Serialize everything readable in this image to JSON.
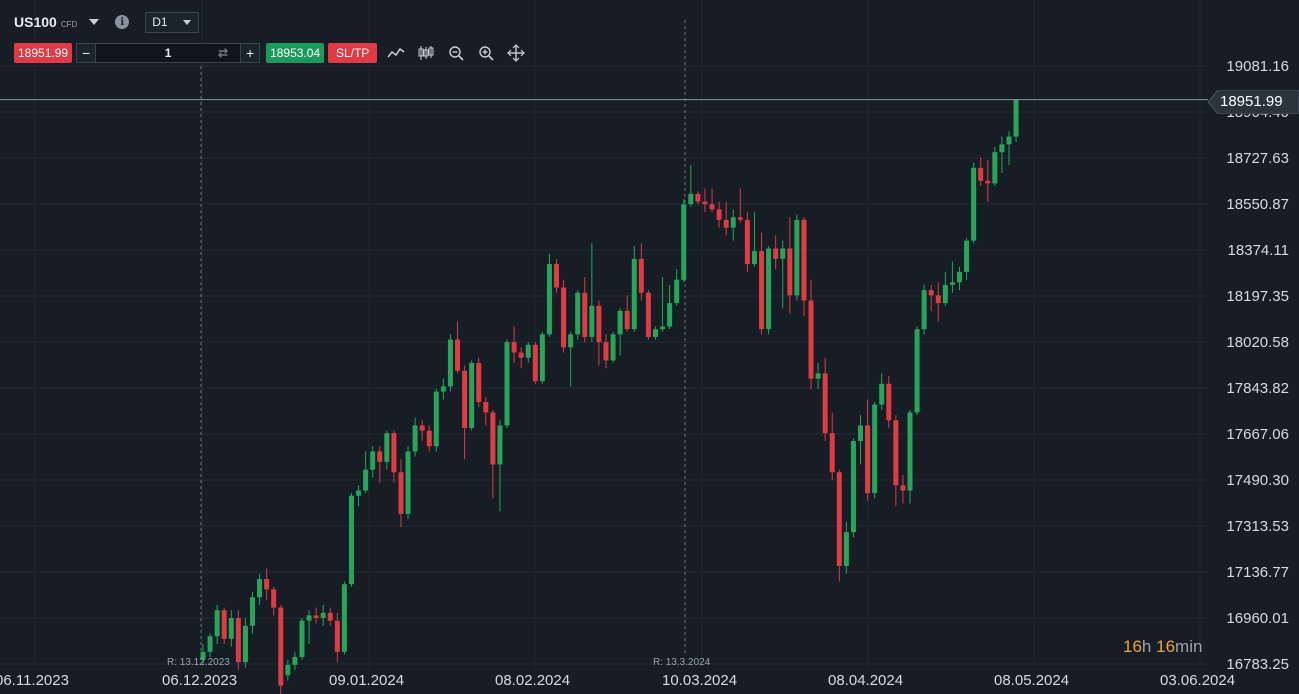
{
  "instrument": {
    "symbol": "US100",
    "type": "CFD"
  },
  "timeframe": {
    "selected": "D1"
  },
  "trade": {
    "sell_price": "18951.99",
    "buy_price": "18953.04",
    "quantity": "1",
    "minus_label": "−",
    "plus_label": "+",
    "sltp_label": "SL/TP"
  },
  "toolbar": {
    "icons": [
      "line-chart-icon",
      "candlestick-chart-icon",
      "zoom-out-icon",
      "zoom-in-icon",
      "crosshair-move-icon"
    ]
  },
  "axis": {
    "y_ticks": [
      "19081.16",
      "18904.40",
      "18727.63",
      "18550.87",
      "18374.11",
      "18197.35",
      "18020.58",
      "17843.82",
      "17667.06",
      "17490.30",
      "17313.53",
      "17136.77",
      "16960.01",
      "16783.25"
    ],
    "x_ticks": [
      "06.11.2023",
      "06.12.2023",
      "09.01.2024",
      "08.02.2024",
      "10.03.2024",
      "08.04.2024",
      "08.05.2024",
      "03.06.2024"
    ]
  },
  "current_price": "18951.99",
  "reference_lines": [
    {
      "label": "R: 13.12.2023"
    },
    {
      "label": "R: 13.3.2024"
    }
  ],
  "countdown": {
    "hours": "16",
    "hours_unit": "h",
    "minutes": "16",
    "minutes_unit": "min"
  },
  "colors": {
    "background": "#161d25",
    "bull": "#26a65b",
    "bear": "#e03a45",
    "countdown_number": "#f0a33a"
  },
  "chart_data": {
    "type": "candlestick",
    "instrument": "US100",
    "timeframe": "D1",
    "ylim": [
      16783.25,
      19081.16
    ],
    "candles": [
      {
        "o": 16800,
        "h": 16860,
        "l": 16780,
        "c": 16830
      },
      {
        "o": 16830,
        "h": 16900,
        "l": 16810,
        "c": 16890
      },
      {
        "o": 16890,
        "h": 17010,
        "l": 16860,
        "c": 16990
      },
      {
        "o": 16990,
        "h": 17000,
        "l": 16860,
        "c": 16880
      },
      {
        "o": 16880,
        "h": 16990,
        "l": 16850,
        "c": 16960
      },
      {
        "o": 16960,
        "h": 16990,
        "l": 16760,
        "c": 16790
      },
      {
        "o": 16790,
        "h": 16960,
        "l": 16770,
        "c": 16930
      },
      {
        "o": 16930,
        "h": 17060,
        "l": 16900,
        "c": 17040
      },
      {
        "o": 17040,
        "h": 17130,
        "l": 17010,
        "c": 17110
      },
      {
        "o": 17110,
        "h": 17150,
        "l": 17030,
        "c": 17070
      },
      {
        "o": 17070,
        "h": 17080,
        "l": 16970,
        "c": 17000
      },
      {
        "o": 17000,
        "h": 17010,
        "l": 16660,
        "c": 16700
      },
      {
        "o": 16740,
        "h": 16800,
        "l": 16720,
        "c": 16780
      },
      {
        "o": 16780,
        "h": 16830,
        "l": 16760,
        "c": 16810
      },
      {
        "o": 16810,
        "h": 16960,
        "l": 16800,
        "c": 16950
      },
      {
        "o": 16950,
        "h": 16990,
        "l": 16860,
        "c": 16970
      },
      {
        "o": 16970,
        "h": 17000,
        "l": 16940,
        "c": 16960
      },
      {
        "o": 16960,
        "h": 17010,
        "l": 16930,
        "c": 16980
      },
      {
        "o": 16980,
        "h": 17000,
        "l": 16930,
        "c": 16950
      },
      {
        "o": 16950,
        "h": 16980,
        "l": 16790,
        "c": 16830
      },
      {
        "o": 16830,
        "h": 17100,
        "l": 16820,
        "c": 17090
      },
      {
        "o": 17090,
        "h": 17440,
        "l": 17080,
        "c": 17430
      },
      {
        "o": 17430,
        "h": 17470,
        "l": 17390,
        "c": 17450
      },
      {
        "o": 17450,
        "h": 17600,
        "l": 17440,
        "c": 17530
      },
      {
        "o": 17530,
        "h": 17620,
        "l": 17500,
        "c": 17600
      },
      {
        "o": 17600,
        "h": 17620,
        "l": 17480,
        "c": 17560
      },
      {
        "o": 17560,
        "h": 17680,
        "l": 17530,
        "c": 17670
      },
      {
        "o": 17670,
        "h": 17680,
        "l": 17480,
        "c": 17520
      },
      {
        "o": 17520,
        "h": 17570,
        "l": 17310,
        "c": 17360
      },
      {
        "o": 17360,
        "h": 17620,
        "l": 17340,
        "c": 17600
      },
      {
        "o": 17600,
        "h": 17730,
        "l": 17580,
        "c": 17700
      },
      {
        "o": 17700,
        "h": 17720,
        "l": 17640,
        "c": 17680
      },
      {
        "o": 17680,
        "h": 17700,
        "l": 17600,
        "c": 17620
      },
      {
        "o": 17620,
        "h": 17840,
        "l": 17600,
        "c": 17830
      },
      {
        "o": 17830,
        "h": 17880,
        "l": 17800,
        "c": 17850
      },
      {
        "o": 17850,
        "h": 18050,
        "l": 17830,
        "c": 18030
      },
      {
        "o": 18030,
        "h": 18100,
        "l": 17900,
        "c": 17910
      },
      {
        "o": 17910,
        "h": 17930,
        "l": 17570,
        "c": 17690
      },
      {
        "o": 17690,
        "h": 17950,
        "l": 17680,
        "c": 17940
      },
      {
        "o": 17940,
        "h": 17960,
        "l": 17770,
        "c": 17790
      },
      {
        "o": 17790,
        "h": 17810,
        "l": 17700,
        "c": 17750
      },
      {
        "o": 17750,
        "h": 17760,
        "l": 17420,
        "c": 17550
      },
      {
        "o": 17550,
        "h": 17720,
        "l": 17370,
        "c": 17700
      },
      {
        "o": 17700,
        "h": 18030,
        "l": 17690,
        "c": 18020
      },
      {
        "o": 18020,
        "h": 18080,
        "l": 17940,
        "c": 17980
      },
      {
        "o": 17980,
        "h": 18000,
        "l": 17920,
        "c": 17960
      },
      {
        "o": 17960,
        "h": 18020,
        "l": 17940,
        "c": 18010
      },
      {
        "o": 18010,
        "h": 18020,
        "l": 17860,
        "c": 17870
      },
      {
        "o": 17870,
        "h": 18060,
        "l": 17860,
        "c": 18050
      },
      {
        "o": 18050,
        "h": 18360,
        "l": 18040,
        "c": 18320
      },
      {
        "o": 18320,
        "h": 18340,
        "l": 18210,
        "c": 18230
      },
      {
        "o": 18230,
        "h": 18260,
        "l": 17980,
        "c": 18000
      },
      {
        "o": 18000,
        "h": 18060,
        "l": 17850,
        "c": 18050
      },
      {
        "o": 18050,
        "h": 18220,
        "l": 18030,
        "c": 18210
      },
      {
        "o": 18210,
        "h": 18270,
        "l": 18020,
        "c": 18040
      },
      {
        "o": 18040,
        "h": 18400,
        "l": 18020,
        "c": 18160
      },
      {
        "o": 18160,
        "h": 18180,
        "l": 17930,
        "c": 18020
      },
      {
        "o": 18020,
        "h": 18050,
        "l": 17920,
        "c": 17950
      },
      {
        "o": 17950,
        "h": 18060,
        "l": 17940,
        "c": 18050
      },
      {
        "o": 18050,
        "h": 18150,
        "l": 17970,
        "c": 18140
      },
      {
        "o": 18140,
        "h": 18200,
        "l": 18060,
        "c": 18070
      },
      {
        "o": 18070,
        "h": 18390,
        "l": 18060,
        "c": 18340
      },
      {
        "o": 18340,
        "h": 18400,
        "l": 18180,
        "c": 18210
      },
      {
        "o": 18210,
        "h": 18220,
        "l": 18030,
        "c": 18040
      },
      {
        "o": 18040,
        "h": 18080,
        "l": 18030,
        "c": 18070
      },
      {
        "o": 18070,
        "h": 18270,
        "l": 18060,
        "c": 18080
      },
      {
        "o": 18080,
        "h": 18240,
        "l": 18070,
        "c": 18170
      },
      {
        "o": 18170,
        "h": 18300,
        "l": 18160,
        "c": 18260
      },
      {
        "o": 18260,
        "h": 18570,
        "l": 18250,
        "c": 18550
      },
      {
        "o": 18550,
        "h": 18700,
        "l": 18540,
        "c": 18590
      },
      {
        "o": 18590,
        "h": 18600,
        "l": 18550,
        "c": 18560
      },
      {
        "o": 18560,
        "h": 18610,
        "l": 18520,
        "c": 18550
      },
      {
        "o": 18550,
        "h": 18610,
        "l": 18520,
        "c": 18530
      },
      {
        "o": 18530,
        "h": 18560,
        "l": 18460,
        "c": 18490
      },
      {
        "o": 18490,
        "h": 18560,
        "l": 18430,
        "c": 18460
      },
      {
        "o": 18460,
        "h": 18530,
        "l": 18410,
        "c": 18500
      },
      {
        "o": 18500,
        "h": 18610,
        "l": 18480,
        "c": 18490
      },
      {
        "o": 18490,
        "h": 18520,
        "l": 18290,
        "c": 18320
      },
      {
        "o": 18320,
        "h": 18520,
        "l": 18310,
        "c": 18370
      },
      {
        "o": 18370,
        "h": 18440,
        "l": 18050,
        "c": 18070
      },
      {
        "o": 18070,
        "h": 18390,
        "l": 18050,
        "c": 18380
      },
      {
        "o": 18380,
        "h": 18430,
        "l": 18300,
        "c": 18340
      },
      {
        "o": 18340,
        "h": 18410,
        "l": 18150,
        "c": 18380
      },
      {
        "o": 18380,
        "h": 18500,
        "l": 18130,
        "c": 18200
      },
      {
        "o": 18200,
        "h": 18510,
        "l": 18180,
        "c": 18490
      },
      {
        "o": 18490,
        "h": 18500,
        "l": 18120,
        "c": 18180
      },
      {
        "o": 18180,
        "h": 18260,
        "l": 17840,
        "c": 17880
      },
      {
        "o": 17880,
        "h": 17940,
        "l": 17840,
        "c": 17900
      },
      {
        "o": 17900,
        "h": 17960,
        "l": 17640,
        "c": 17670
      },
      {
        "o": 17670,
        "h": 17750,
        "l": 17490,
        "c": 17520
      },
      {
        "o": 17520,
        "h": 17530,
        "l": 17100,
        "c": 17160
      },
      {
        "o": 17160,
        "h": 17330,
        "l": 17130,
        "c": 17290
      },
      {
        "o": 17290,
        "h": 17650,
        "l": 17270,
        "c": 17640
      },
      {
        "o": 17640,
        "h": 17740,
        "l": 17550,
        "c": 17700
      },
      {
        "o": 17700,
        "h": 17800,
        "l": 17410,
        "c": 17440
      },
      {
        "o": 17440,
        "h": 17790,
        "l": 17420,
        "c": 17780
      },
      {
        "o": 17780,
        "h": 17900,
        "l": 17760,
        "c": 17860
      },
      {
        "o": 17860,
        "h": 17890,
        "l": 17690,
        "c": 17720
      },
      {
        "o": 17720,
        "h": 17740,
        "l": 17390,
        "c": 17470
      },
      {
        "o": 17470,
        "h": 17510,
        "l": 17400,
        "c": 17450
      },
      {
        "o": 17450,
        "h": 17760,
        "l": 17400,
        "c": 17750
      },
      {
        "o": 17750,
        "h": 18080,
        "l": 17740,
        "c": 18070
      },
      {
        "o": 18070,
        "h": 18240,
        "l": 18050,
        "c": 18220
      },
      {
        "o": 18220,
        "h": 18240,
        "l": 18140,
        "c": 18200
      },
      {
        "o": 18200,
        "h": 18250,
        "l": 18100,
        "c": 18170
      },
      {
        "o": 18170,
        "h": 18290,
        "l": 18160,
        "c": 18240
      },
      {
        "o": 18240,
        "h": 18330,
        "l": 18210,
        "c": 18250
      },
      {
        "o": 18250,
        "h": 18310,
        "l": 18220,
        "c": 18290
      },
      {
        "o": 18290,
        "h": 18420,
        "l": 18260,
        "c": 18410
      },
      {
        "o": 18410,
        "h": 18710,
        "l": 18400,
        "c": 18690
      },
      {
        "o": 18690,
        "h": 18730,
        "l": 18620,
        "c": 18640
      },
      {
        "o": 18640,
        "h": 18720,
        "l": 18560,
        "c": 18630
      },
      {
        "o": 18630,
        "h": 18770,
        "l": 18620,
        "c": 18750
      },
      {
        "o": 18750,
        "h": 18810,
        "l": 18670,
        "c": 18780
      },
      {
        "o": 18780,
        "h": 18830,
        "l": 18700,
        "c": 18810
      },
      {
        "o": 18810,
        "h": 18950,
        "l": 18790,
        "c": 18952
      }
    ]
  }
}
